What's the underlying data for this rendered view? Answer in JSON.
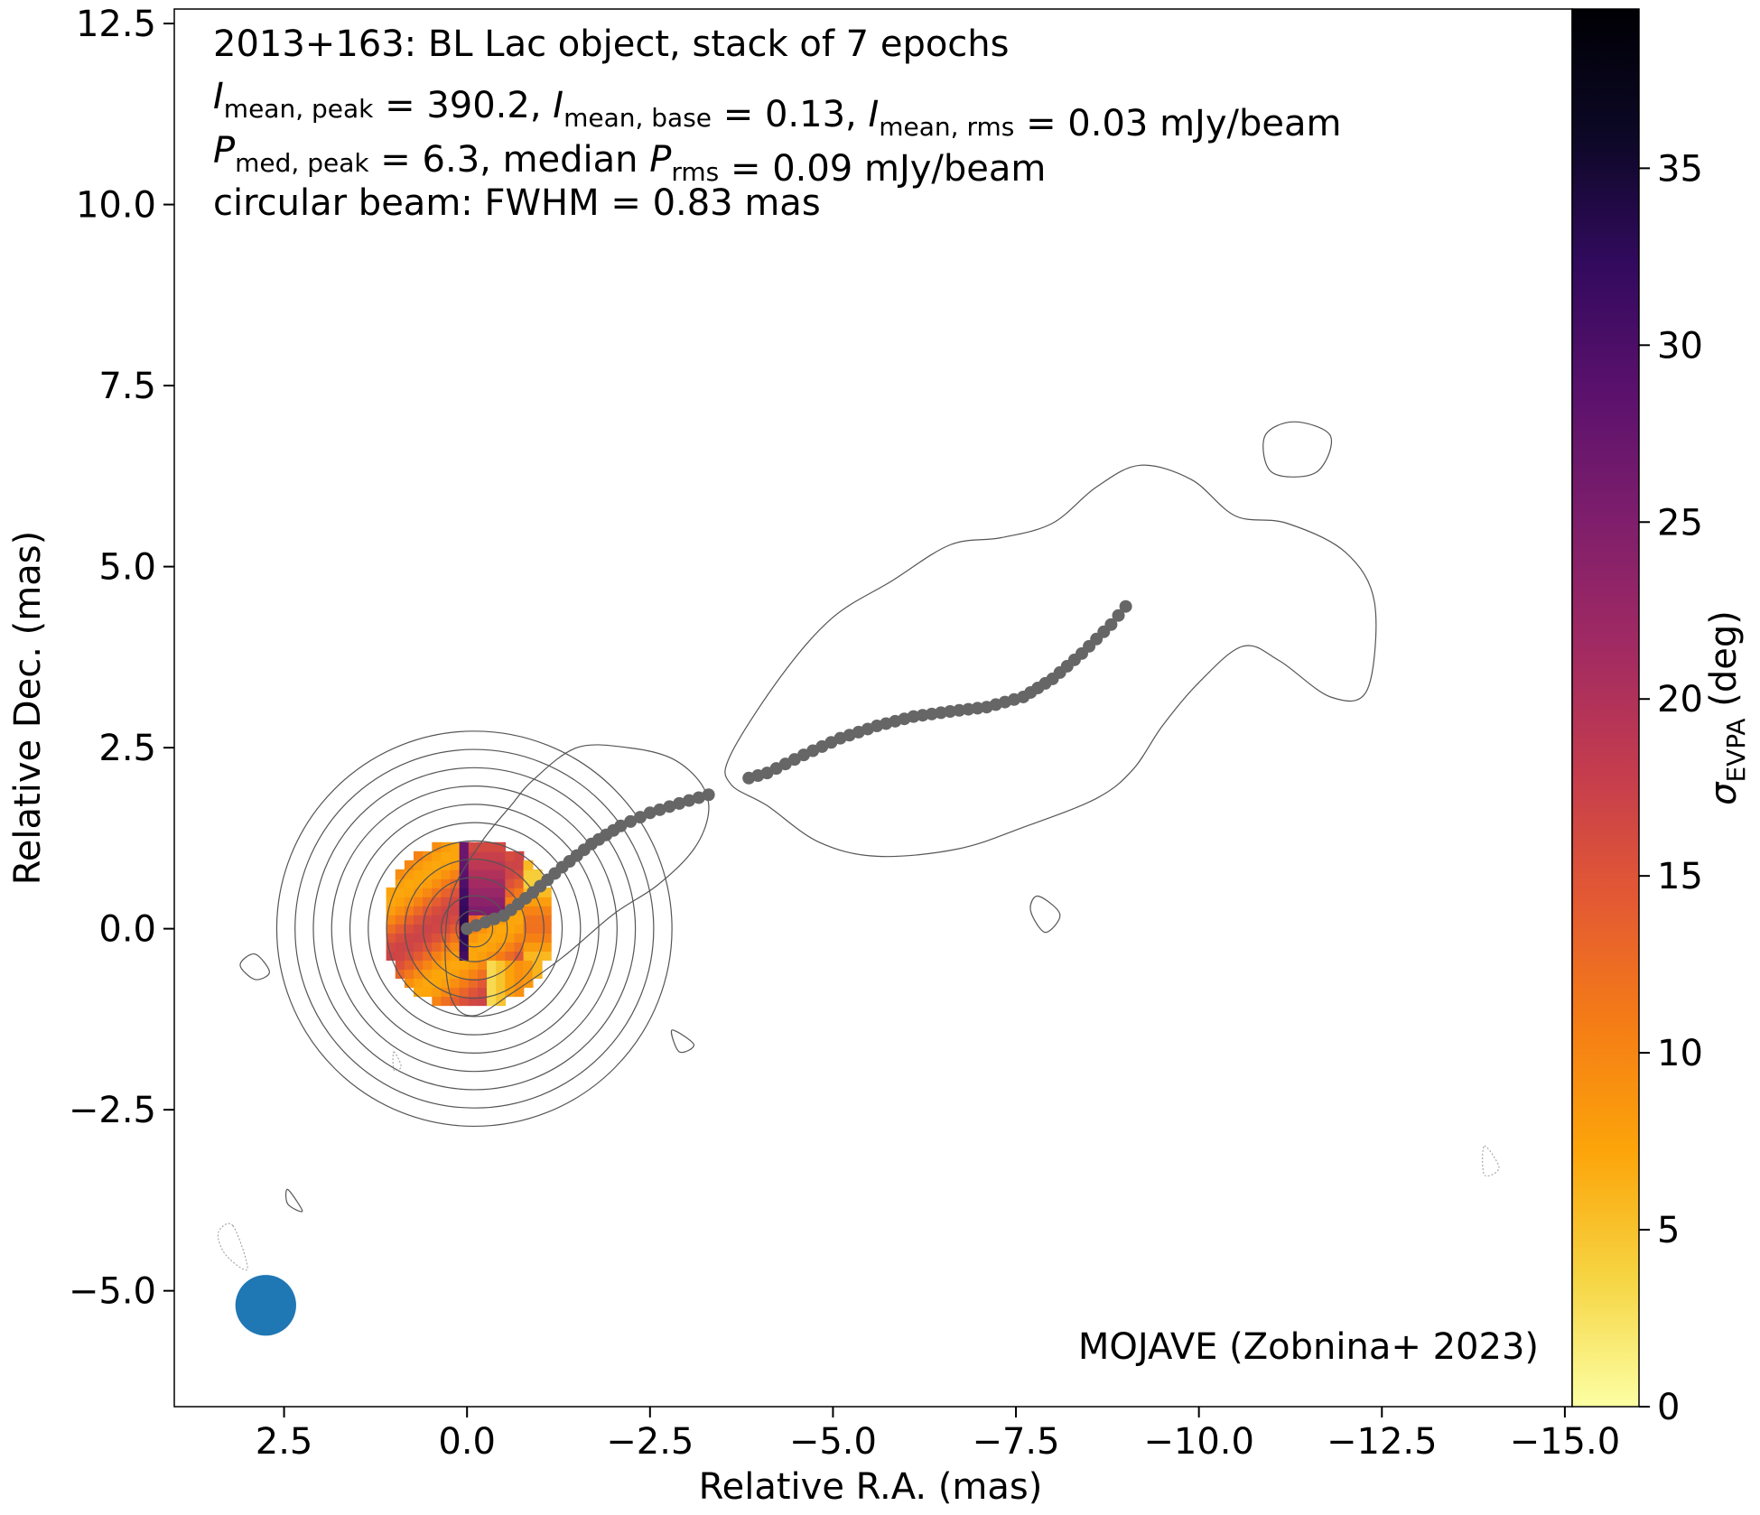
{
  "chart_data": {
    "type": "scatter",
    "title_lines": [
      {
        "parts": [
          {
            "t": "2013+163: BL Lac object, stack of 7 epochs"
          }
        ]
      },
      {
        "parts": [
          {
            "t": "I",
            "style": "italic"
          },
          {
            "t": "mean, peak",
            "style": "sub"
          },
          {
            "t": " = 390.2, "
          },
          {
            "t": "I",
            "style": "italic"
          },
          {
            "t": "mean, base",
            "style": "sub"
          },
          {
            "t": " = 0.13, "
          },
          {
            "t": "I",
            "style": "italic"
          },
          {
            "t": "mean, rms",
            "style": "sub"
          },
          {
            "t": " = 0.03 mJy/beam"
          }
        ]
      },
      {
        "parts": [
          {
            "t": "P",
            "style": "italic"
          },
          {
            "t": "med, peak",
            "style": "sub"
          },
          {
            "t": " = 6.3, median "
          },
          {
            "t": "P",
            "style": "italic"
          },
          {
            "t": "rms",
            "style": "sub"
          },
          {
            "t": " = 0.09 mJy/beam"
          }
        ]
      },
      {
        "parts": [
          {
            "t": "circular beam: FWHM = 0.83 mas"
          }
        ]
      }
    ],
    "credit": "MOJAVE (Zobnina+ 2023)",
    "xlabel": "Relative R.A. (mas)",
    "ylabel": "Relative Dec. (mas)",
    "xlim": [
      4.0,
      -15.1
    ],
    "ylim": [
      -6.6,
      12.7
    ],
    "xticks": [
      2.5,
      0.0,
      -2.5,
      -5.0,
      -7.5,
      -10.0,
      -12.5,
      -15.0
    ],
    "xtick_labels": [
      "2.5",
      "0.0",
      "−2.5",
      "−5.0",
      "−7.5",
      "−10.0",
      "−12.5",
      "−15.0"
    ],
    "yticks": [
      -5.0,
      -2.5,
      0.0,
      2.5,
      5.0,
      7.5,
      10.0,
      12.5
    ],
    "ytick_labels": [
      "−5.0",
      "−2.5",
      "0.0",
      "2.5",
      "5.0",
      "7.5",
      "10.0",
      "12.5"
    ],
    "colorbar": {
      "label_symbol": "σ",
      "label_sub": "EVPA",
      "label_unit": " (deg)",
      "range": [
        0,
        39.5
      ],
      "ticks": [
        0,
        5,
        10,
        15,
        20,
        25,
        30,
        35
      ],
      "tick_labels": [
        "0",
        "5",
        "10",
        "15",
        "20",
        "25",
        "30",
        "35"
      ],
      "colormap": "inferno_r",
      "stops": [
        "#fcffa4",
        "#f6d543",
        "#fca50a",
        "#f57d15",
        "#e35933",
        "#c43c4e",
        "#a12a63",
        "#7e1e6c",
        "#5a116d",
        "#320a5e",
        "#0c0826",
        "#000004"
      ]
    },
    "beam": {
      "ra": 2.75,
      "dec": -5.2,
      "fwhm": 0.83,
      "color": "#1f77b4"
    },
    "ridge_line": {
      "color": "#666666",
      "segments": [
        {
          "ra": [
            0.0,
            -0.5,
            -0.9,
            -1.3,
            -1.7,
            -2.1,
            -2.5,
            -2.9,
            -3.3
          ],
          "dec": [
            0.0,
            0.18,
            0.5,
            0.85,
            1.17,
            1.42,
            1.6,
            1.73,
            1.85
          ]
        },
        {
          "ra": [
            -3.85,
            -4.1,
            -4.6,
            -5.1,
            -5.6,
            -6.1,
            -6.6,
            -7.1,
            -7.6,
            -8.0,
            -8.4,
            -8.8,
            -9.0
          ],
          "dec": [
            2.08,
            2.15,
            2.4,
            2.63,
            2.8,
            2.93,
            3.0,
            3.06,
            3.2,
            3.45,
            3.8,
            4.2,
            4.45
          ]
        }
      ]
    },
    "contours": {
      "color": "#555555",
      "core": {
        "ra": -0.1,
        "dec": 0.0,
        "radii": [
          0.25,
          0.45,
          0.7,
          0.95,
          1.2,
          1.45,
          1.7,
          1.95,
          2.2,
          2.45,
          2.7
        ]
      },
      "islands": [
        {
          "ra": [
            -0.9,
            -1.5,
            -2.2,
            -2.8,
            -3.2,
            -3.3,
            -3.1,
            -2.6,
            -2.0,
            -1.3,
            -0.6,
            -0.1,
            0.2,
            0.3,
            0.2,
            -0.2,
            -0.6
          ],
          "dec": [
            2.05,
            2.5,
            2.5,
            2.35,
            2.0,
            1.6,
            1.1,
            0.6,
            0.2,
            -0.4,
            -0.9,
            -1.2,
            -1.0,
            -0.3,
            0.5,
            1.2,
            1.7
          ]
        },
        {
          "ra": [
            -3.6,
            -4.3,
            -5.0,
            -5.8,
            -6.6,
            -7.3,
            -8.0,
            -8.6,
            -9.2,
            -9.9,
            -10.5,
            -11.2,
            -12.0,
            -12.4,
            -12.3,
            -11.8,
            -11.1,
            -10.6,
            -10.0,
            -9.5,
            -9.1,
            -8.6,
            -7.6,
            -6.7,
            -5.6,
            -4.8,
            -4.1,
            -3.6
          ],
          "dec": [
            2.4,
            3.5,
            4.3,
            4.8,
            5.3,
            5.4,
            5.6,
            6.1,
            6.4,
            6.2,
            5.7,
            5.6,
            5.2,
            4.5,
            3.3,
            3.2,
            3.7,
            3.9,
            3.4,
            2.8,
            2.2,
            1.8,
            1.4,
            1.1,
            1.0,
            1.2,
            1.7,
            2.0
          ]
        },
        {
          "ra": [
            -11.3,
            -11.8,
            -11.6,
            -11.0,
            -10.9
          ],
          "dec": [
            7.0,
            6.8,
            6.3,
            6.3,
            6.8
          ]
        },
        {
          "ra": [
            -7.8,
            -8.1,
            -7.9,
            -7.7
          ],
          "dec": [
            0.45,
            0.2,
            -0.05,
            0.25
          ]
        },
        {
          "ra": [
            2.9,
            2.7,
            2.9,
            3.1
          ],
          "dec": [
            -0.35,
            -0.6,
            -0.7,
            -0.5
          ]
        },
        {
          "ra": [
            -2.8,
            -3.1,
            -2.9
          ],
          "dec": [
            -1.4,
            -1.6,
            -1.7
          ]
        },
        {
          "ra": [
            2.45,
            2.25,
            2.45
          ],
          "dec": [
            -3.6,
            -3.9,
            -3.8
          ]
        }
      ],
      "negative": [
        {
          "ra": [
            3.2,
            3.0,
            3.3,
            3.4
          ],
          "dec": [
            -4.1,
            -4.7,
            -4.5,
            -4.2
          ]
        },
        {
          "ra": [
            1.0,
            0.9,
            1.0
          ],
          "dec": [
            -1.7,
            -1.9,
            -1.95
          ]
        },
        {
          "ra": [
            -13.9,
            -14.1,
            -13.9
          ],
          "dec": [
            -3.0,
            -3.3,
            -3.4
          ]
        }
      ]
    },
    "evpa_spot": {
      "ra": 0.05,
      "dec": 0.0,
      "radius": 1.18
    }
  }
}
